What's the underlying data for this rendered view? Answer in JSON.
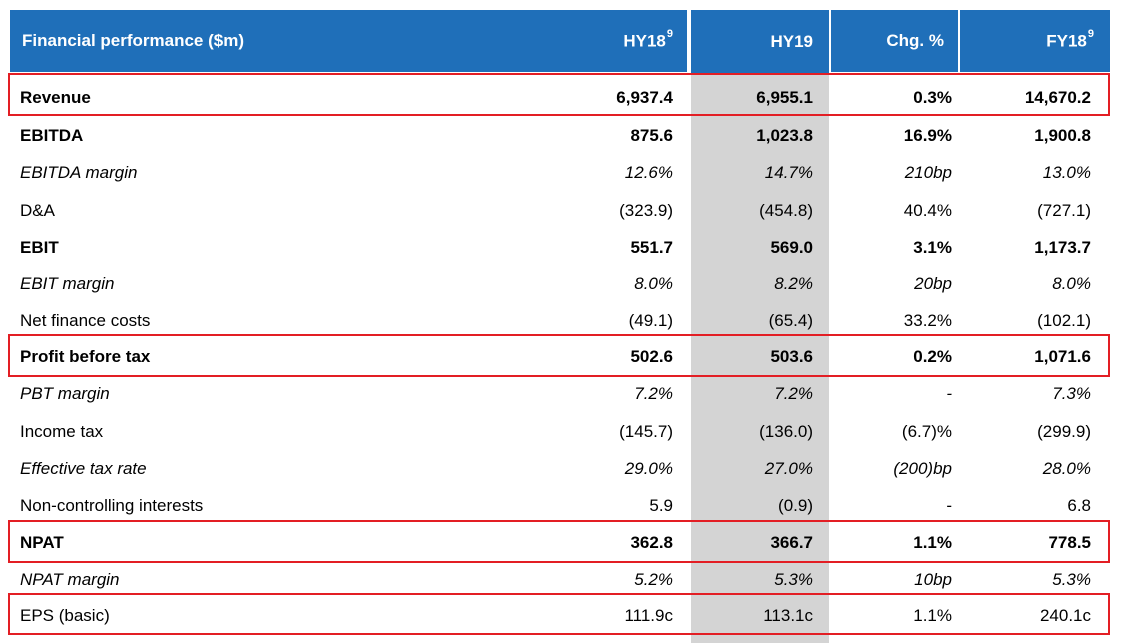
{
  "header": {
    "label": "Financial performance ($m)",
    "hy18": "HY18",
    "hy18_sup": "9",
    "hy19": "HY19",
    "chg": "Chg. %",
    "fy18": "FY18",
    "fy18_sup": "9"
  },
  "rows": [
    {
      "label": "Revenue",
      "hy18": "6,937.4",
      "hy19": "6,955.1",
      "chg": "0.3%",
      "fy18": "14,670.2"
    },
    {
      "label": "EBITDA",
      "hy18": "875.6",
      "hy19": "1,023.8",
      "chg": "16.9%",
      "fy18": "1,900.8"
    },
    {
      "label": "EBITDA margin",
      "hy18": "12.6%",
      "hy19": "14.7%",
      "chg": "210bp",
      "fy18": "13.0%"
    },
    {
      "label": "D&A",
      "hy18": "(323.9)",
      "hy19": "(454.8)",
      "chg": "40.4%",
      "fy18": "(727.1)"
    },
    {
      "label": "EBIT",
      "hy18": "551.7",
      "hy19": "569.0",
      "chg": "3.1%",
      "fy18": "1,173.7"
    },
    {
      "label": "EBIT margin",
      "hy18": "8.0%",
      "hy19": "8.2%",
      "chg": "20bp",
      "fy18": "8.0%"
    },
    {
      "label": "Net finance costs",
      "hy18": "(49.1)",
      "hy19": "(65.4)",
      "chg": "33.2%",
      "fy18": "(102.1)"
    },
    {
      "label": "Profit before tax",
      "hy18": "502.6",
      "hy19": "503.6",
      "chg": "0.2%",
      "fy18": "1,071.6"
    },
    {
      "label": "PBT margin",
      "hy18": "7.2%",
      "hy19": "7.2%",
      "chg": "-",
      "fy18": "7.3%"
    },
    {
      "label": "Income tax",
      "hy18": "(145.7)",
      "hy19": "(136.0)",
      "chg": "(6.7)%",
      "fy18": "(299.9)"
    },
    {
      "label": "Effective tax rate",
      "hy18": "29.0%",
      "hy19": "27.0%",
      "chg": "(200)bp",
      "fy18": "28.0%"
    },
    {
      "label": "Non-controlling interests",
      "hy18": "5.9",
      "hy19": "(0.9)",
      "chg": "-",
      "fy18": "6.8"
    },
    {
      "label": "NPAT",
      "hy18": "362.8",
      "hy19": "366.7",
      "chg": "1.1%",
      "fy18": "778.5"
    },
    {
      "label": "NPAT margin",
      "hy18": "5.2%",
      "hy19": "5.3%",
      "chg": "10bp",
      "fy18": "5.3%"
    },
    {
      "label": "EPS (basic)",
      "hy18": "111.9c",
      "hy19": "113.1c",
      "chg": "1.1%",
      "fy18": "240.1c"
    }
  ],
  "colors": {
    "header_bg": "#1F6FB9",
    "highlight_border": "#E31E24",
    "hy19_column_bg": "#D4D4D4"
  }
}
